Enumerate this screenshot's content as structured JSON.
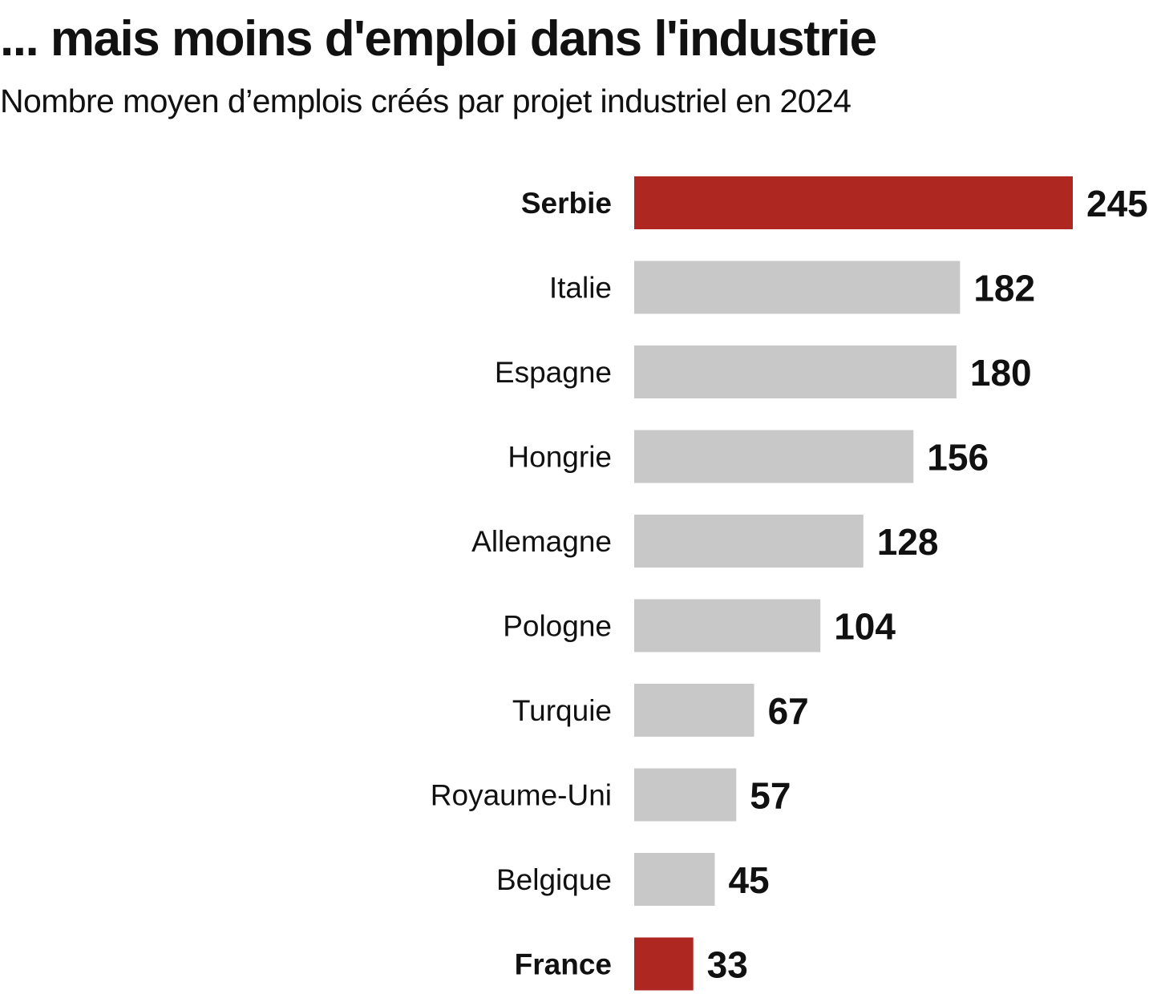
{
  "chart_data": {
    "type": "bar",
    "orientation": "horizontal",
    "title": "... mais moins d'emploi dans l'industrie",
    "subtitle": "Nombre moyen d’emplois créés par projet industriel en 2024",
    "categories": [
      "Serbie",
      "Italie",
      "Espagne",
      "Hongrie",
      "Allemagne",
      "Pologne",
      "Turquie",
      "Royaume-Uni",
      "Belgique",
      "France"
    ],
    "values": [
      245,
      182,
      180,
      156,
      128,
      104,
      67,
      57,
      45,
      33
    ],
    "value_labels": [
      "245",
      "182",
      "180",
      "156",
      "128",
      "104",
      "67",
      "57",
      "45",
      "33"
    ],
    "highlighted": [
      "Serbie",
      "France"
    ],
    "xlim": [
      0,
      245
    ],
    "grid": false,
    "colors": {
      "highlight": "#ae2720",
      "default": "#c8c8c8",
      "text": "#111111"
    }
  }
}
